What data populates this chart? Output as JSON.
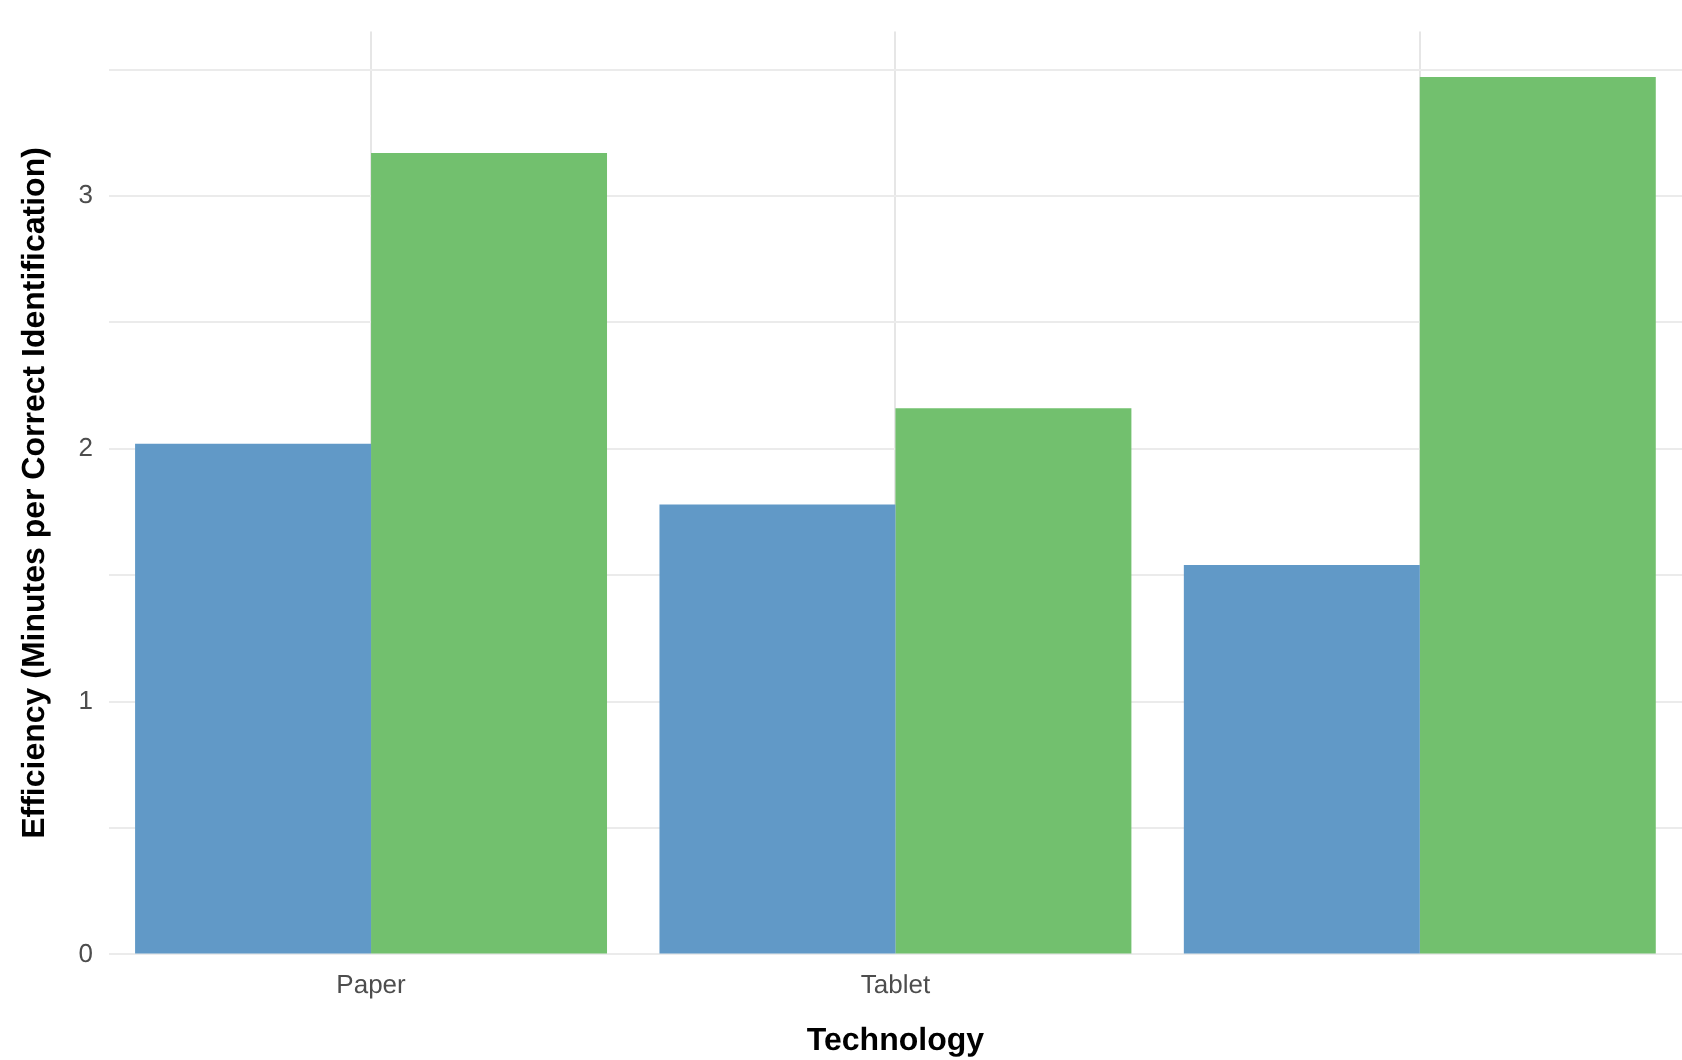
{
  "chart_data": {
    "type": "bar",
    "xlabel": "Technology",
    "ylabel": "Efficiency (Minutes per Correct Identification)",
    "categories": [
      "Paper",
      "Tablet",
      null
    ],
    "series": [
      {
        "color": "#6199c7",
        "values": [
          2.02,
          1.78,
          1.54
        ]
      },
      {
        "color": "#72c06e",
        "values": [
          3.17,
          2.16,
          3.47
        ]
      }
    ],
    "ylim": [
      0,
      3.65
    ],
    "yticks": [
      0,
      {
        "value": 0.5,
        "label": null
      },
      1,
      {
        "value": 1.5,
        "label": null
      },
      2,
      {
        "value": 2.5,
        "label": null
      },
      3,
      {
        "value": 3.5,
        "label": null
      }
    ],
    "grid": true
  }
}
